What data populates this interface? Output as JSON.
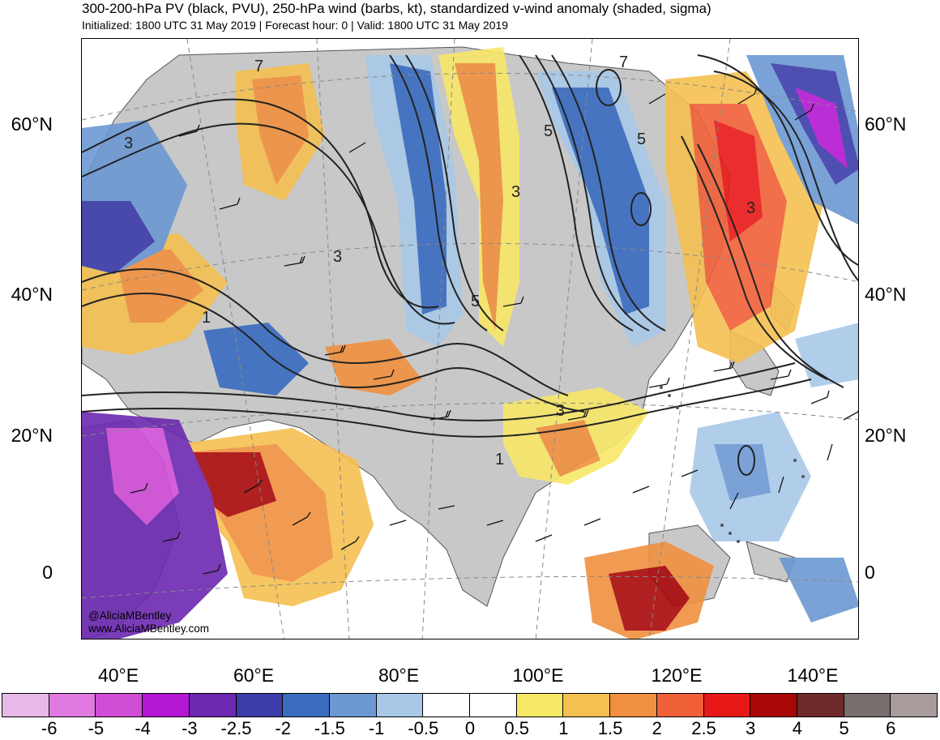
{
  "header": {
    "title": "300-200-hPa PV (black, PVU), 250-hPa wind (barbs, kt), standardized v-wind anomaly (shaded, sigma)",
    "subtitle": "Initialized: 1800 UTC 31 May 2019 | Forecast hour: 0 | Valid: 1800 UTC 31 May 2019"
  },
  "map": {
    "lat_labels": [
      "60°N",
      "40°N",
      "20°N",
      "0"
    ],
    "lon_labels": [
      "40°E",
      "60°E",
      "80°E",
      "100°E",
      "120°E",
      "140°E"
    ],
    "pv_contour_labels": [
      "7",
      "5",
      "3",
      "1"
    ],
    "credit_handle": "@AliciaMBentley",
    "credit_url": "www.AliciaMBentley.com",
    "land_color": "#c8c8c8",
    "coastline_color": "#555555"
  },
  "colorbar": {
    "labels": [
      "-6",
      "-5",
      "-4",
      "-3",
      "-2.5",
      "-2",
      "-1.5",
      "-1",
      "-0.5",
      "0",
      "0.5",
      "1",
      "1.5",
      "2",
      "2.5",
      "3",
      "4",
      "5",
      "6"
    ],
    "colors": [
      "#e8b8e8",
      "#e07ae0",
      "#d04ed6",
      "#b418d2",
      "#6c28b0",
      "#3c3caa",
      "#3a6cc0",
      "#6c98d2",
      "#a8c8e8",
      "#ffffff",
      "#ffffff",
      "#f8e868",
      "#f4c050",
      "#f09040",
      "#f06038",
      "#e81818",
      "#a80808",
      "#6e2a2a",
      "#786e6e",
      "#a89c9c"
    ]
  }
}
